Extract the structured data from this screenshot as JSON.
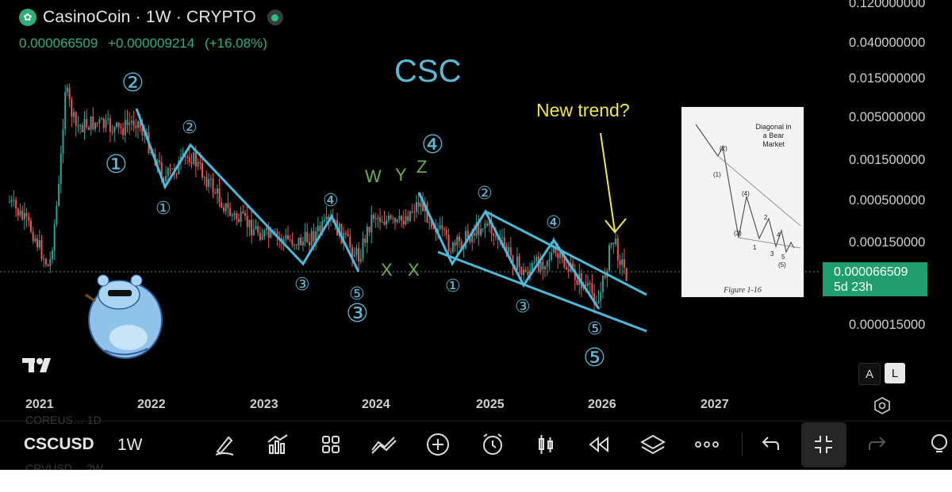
{
  "header": {
    "symbol_title": "CasinoCoin · 1W · CRYPTO",
    "price": "0.000066509",
    "change": "+0.000009214",
    "change_pct": "(+16.08%)",
    "logo_icon": "casinocoin-logo-icon"
  },
  "price_axis": {
    "labels": [
      "0.120000000",
      "0.040000000",
      "0.015000000",
      "0.005000000",
      "0.001500000",
      "0.000500000",
      "0.000150000",
      "0.000015000"
    ],
    "current_price": "0.000066509",
    "countdown": "5d 23h"
  },
  "time_axis": {
    "years": [
      "2021",
      "2022",
      "2023",
      "2024",
      "2025",
      "2026",
      "2027"
    ]
  },
  "annotations": {
    "main_title": "CSC",
    "new_trend": "New trend?",
    "wave_labels_big": [
      "②",
      "①",
      "④",
      "③",
      "⑤"
    ],
    "wave_labels_small": [
      "②",
      "①",
      "④",
      "③",
      "⑤",
      "②",
      "①",
      "④",
      "③",
      "⑤"
    ],
    "wxyz": [
      "W",
      "Y",
      "Z",
      "X",
      "X"
    ],
    "big_three": "③",
    "big_five": "⑤",
    "small_five": "⑤"
  },
  "figure_inset": {
    "title": "Diagonal in a Bear Market",
    "caption": "Figure 1-16",
    "labels": [
      "(2)",
      "(1)",
      "(4)",
      "(3)",
      "2",
      "4",
      "1",
      "3",
      "5",
      "(5)"
    ]
  },
  "scale_buttons": {
    "auto": "A",
    "log": "L"
  },
  "toolbar": {
    "symbol": "CSCUSD",
    "timeframe": "1W",
    "ghost_prev": "COREUS… 1D",
    "ghost_next": "CRVUSD… 2W",
    "icons": [
      "brush-icon",
      "indicators-icon",
      "layouts-icon",
      "chart-type-icon",
      "add-icon",
      "alert-clock-icon",
      "candles-icon",
      "replay-icon",
      "layers-icon",
      "more-icon",
      "undo-icon",
      "collapse-icon",
      "redo-icon",
      "hint-icon"
    ]
  },
  "colors": {
    "background": "#000000",
    "up": "#26a69a",
    "down": "#ef5350",
    "annotation": "#5bb8d6",
    "wxyz": "#6ab04c",
    "new_trend": "#f2e64b",
    "price_tag": "#1f9e6e"
  }
}
